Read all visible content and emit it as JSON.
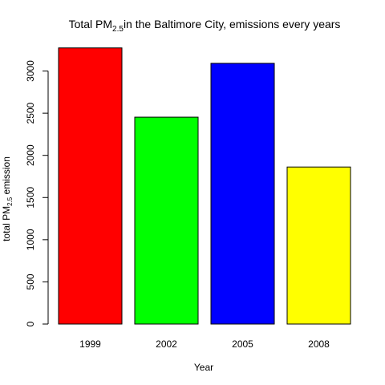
{
  "chart_data": {
    "type": "bar",
    "title_prefix": "Total PM",
    "title_subscript": "2.5",
    "title_suffix": "in the Baltimore City, emissions every years",
    "xlabel": "Year",
    "ylabel_prefix": "total PM",
    "ylabel_subscript": "2.5",
    "ylabel_suffix": " emission",
    "categories": [
      "1999",
      "2002",
      "2005",
      "2008"
    ],
    "values": [
      3274,
      2453,
      3091,
      1862
    ],
    "colors": [
      "#ff0000",
      "#00ff00",
      "#0000ff",
      "#ffff00"
    ],
    "yticks": [
      0,
      500,
      1000,
      1500,
      2000,
      2500,
      3000
    ],
    "ylim": [
      0,
      3300
    ],
    "grid": false,
    "legend": "none"
  }
}
